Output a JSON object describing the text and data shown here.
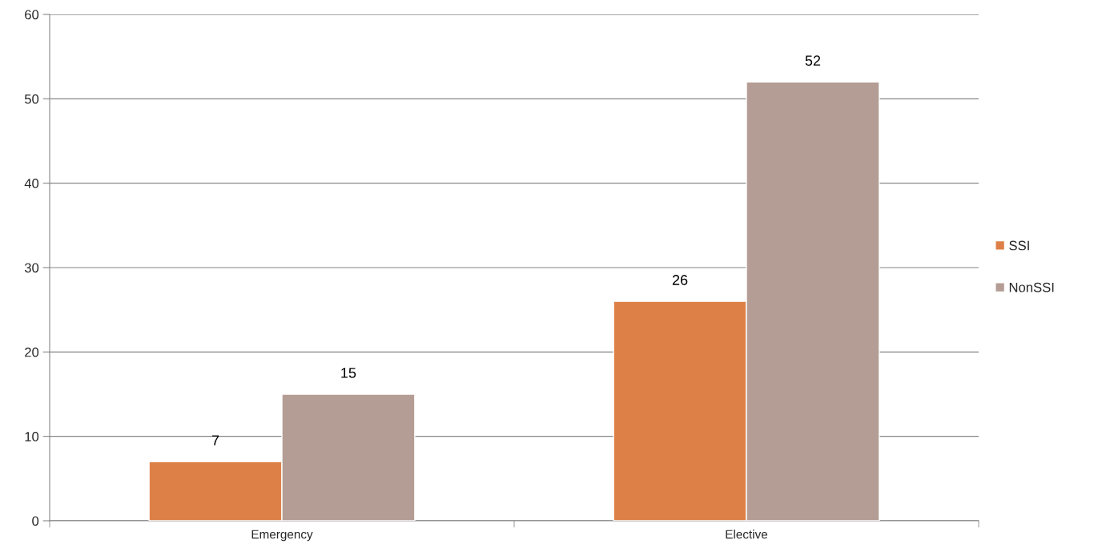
{
  "chart_data": {
    "type": "bar",
    "categories": [
      "Emergency",
      "Elective"
    ],
    "series": [
      {
        "name": "SSI",
        "color": "#dd8047",
        "values": [
          7,
          26
        ]
      },
      {
        "name": "NonSSI",
        "color": "#b49d94",
        "values": [
          15,
          52
        ]
      }
    ],
    "ylim": [
      0,
      60
    ],
    "yticks": [
      0,
      10,
      20,
      30,
      40,
      50,
      60
    ],
    "grid": "y",
    "legend": "right",
    "data_labels": true
  }
}
